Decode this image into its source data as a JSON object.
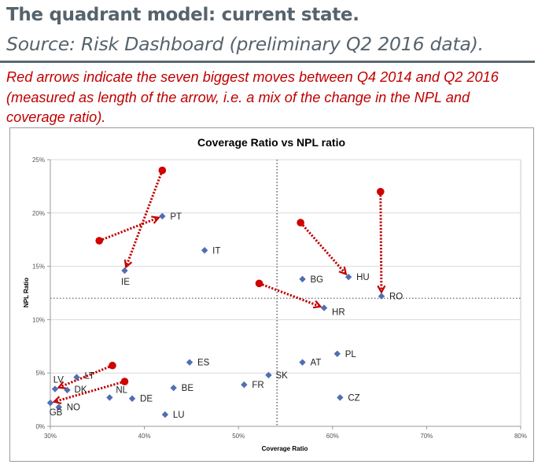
{
  "header": {
    "title": "The quadrant model: current state.",
    "subtitle": "Source: Risk Dashboard (preliminary Q2 2016 data).",
    "note": "Red arrows indicate the seven biggest moves between Q4 2014 and Q2 2016 (measured as length of the arrow, i.e. a mix of the change in the NPL and coverage ratio)."
  },
  "colors": {
    "title": "#56636c",
    "note": "#c00000",
    "point": "#4f6fb0",
    "arrow": "#c00000",
    "start_marker": "#d00000",
    "gridline": "#d9d9d9",
    "threshold_line": "#808080"
  },
  "chart_data": {
    "type": "scatter",
    "title": "Coverage Ratio vs NPL ratio",
    "xlabel": "Coverage Ratio",
    "ylabel": "NPL Ratio",
    "xlim": [
      0.3,
      0.8
    ],
    "ylim": [
      0.0,
      0.25
    ],
    "xticks": [
      0.3,
      0.4,
      0.5,
      0.6,
      0.7,
      0.8
    ],
    "xtick_labels": [
      "30%",
      "40%",
      "50%",
      "60%",
      "70%",
      "80%"
    ],
    "yticks": [
      0.0,
      0.05,
      0.1,
      0.15,
      0.2,
      0.25
    ],
    "ytick_labels": [
      "0%",
      "5%",
      "10%",
      "15%",
      "20%",
      "25%"
    ],
    "grid": "horizontal",
    "legend": "none",
    "threshold_lines": {
      "x": 0.541,
      "y": 0.12
    },
    "points": [
      {
        "label": "PT",
        "x": 0.419,
        "y": 0.197
      },
      {
        "label": "IE",
        "x": 0.379,
        "y": 0.146
      },
      {
        "label": "IT",
        "x": 0.464,
        "y": 0.165
      },
      {
        "label": "BG",
        "x": 0.568,
        "y": 0.138
      },
      {
        "label": "HU",
        "x": 0.617,
        "y": 0.14
      },
      {
        "label": "RO",
        "x": 0.652,
        "y": 0.122
      },
      {
        "label": "HR",
        "x": 0.591,
        "y": 0.111
      },
      {
        "label": "ES",
        "x": 0.448,
        "y": 0.06
      },
      {
        "label": "AT",
        "x": 0.568,
        "y": 0.06
      },
      {
        "label": "PL",
        "x": 0.605,
        "y": 0.068
      },
      {
        "label": "SK",
        "x": 0.532,
        "y": 0.048
      },
      {
        "label": "FR",
        "x": 0.506,
        "y": 0.039
      },
      {
        "label": "BE",
        "x": 0.431,
        "y": 0.036
      },
      {
        "label": "CZ",
        "x": 0.608,
        "y": 0.027
      },
      {
        "label": "LU",
        "x": 0.422,
        "y": 0.011
      },
      {
        "label": "DE",
        "x": 0.387,
        "y": 0.026
      },
      {
        "label": "NL",
        "x": 0.363,
        "y": 0.027
      },
      {
        "label": "LT",
        "x": 0.328,
        "y": 0.046
      },
      {
        "label": "LV",
        "x": 0.305,
        "y": 0.035
      },
      {
        "label": "DK",
        "x": 0.318,
        "y": 0.034
      },
      {
        "label": "NO",
        "x": 0.309,
        "y": 0.018
      },
      {
        "label": "GB",
        "x": 0.3,
        "y": 0.022
      }
    ],
    "arrows": [
      {
        "country": "IE",
        "from": {
          "x": 0.419,
          "y": 0.24
        },
        "to": {
          "x": 0.379,
          "y": 0.146
        }
      },
      {
        "country": "PT",
        "from": {
          "x": 0.352,
          "y": 0.174
        },
        "to": {
          "x": 0.419,
          "y": 0.197
        }
      },
      {
        "country": "HU",
        "from": {
          "x": 0.566,
          "y": 0.191
        },
        "to": {
          "x": 0.617,
          "y": 0.14
        }
      },
      {
        "country": "RO",
        "from": {
          "x": 0.651,
          "y": 0.22
        },
        "to": {
          "x": 0.652,
          "y": 0.122
        }
      },
      {
        "country": "HR",
        "from": {
          "x": 0.522,
          "y": 0.134
        },
        "to": {
          "x": 0.591,
          "y": 0.111
        }
      },
      {
        "country": "LV",
        "from": {
          "x": 0.366,
          "y": 0.057
        },
        "to": {
          "x": 0.305,
          "y": 0.035
        }
      },
      {
        "country": "GB",
        "from": {
          "x": 0.379,
          "y": 0.042
        },
        "to": {
          "x": 0.3,
          "y": 0.022
        }
      }
    ]
  }
}
